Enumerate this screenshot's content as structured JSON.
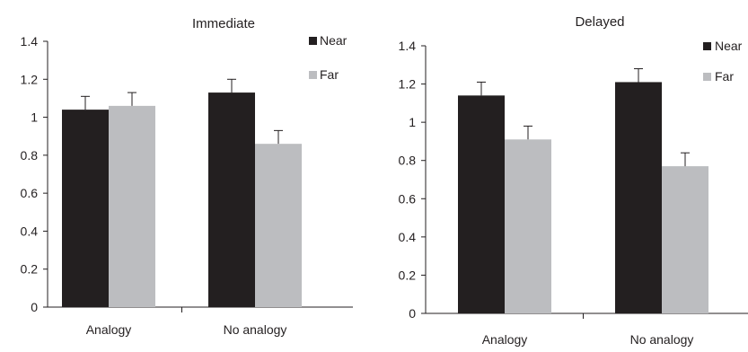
{
  "chart_data": [
    {
      "type": "bar",
      "title": "Immediate",
      "categories": [
        "Analogy",
        "No analogy"
      ],
      "series": [
        {
          "name": "Near",
          "values": [
            1.04,
            1.13
          ],
          "error": [
            0.07,
            0.07
          ]
        },
        {
          "name": "Far",
          "values": [
            1.06,
            0.86
          ],
          "error": [
            0.07,
            0.07
          ]
        }
      ],
      "ylim": [
        0,
        1.4
      ],
      "yticks": [
        "0",
        "0.2",
        "0.4",
        "0.6",
        "0.8",
        "1",
        "1.2",
        "1.4"
      ],
      "grid": false,
      "legend_position": "top-right"
    },
    {
      "type": "bar",
      "title": "Delayed",
      "categories": [
        "Analogy",
        "No analogy"
      ],
      "series": [
        {
          "name": "Near",
          "values": [
            1.14,
            1.21
          ],
          "error": [
            0.07,
            0.07
          ]
        },
        {
          "name": "Far",
          "values": [
            0.91,
            0.77
          ],
          "error": [
            0.07,
            0.07
          ]
        }
      ],
      "ylim": [
        0,
        1.4
      ],
      "yticks": [
        "0",
        "0.2",
        "0.4",
        "0.6",
        "0.8",
        "1",
        "1.2",
        "1.4"
      ],
      "grid": false,
      "legend_position": "top-right"
    }
  ],
  "colors": {
    "near": "#231f20",
    "far": "#bcbdc0",
    "axis": "#231f20"
  }
}
